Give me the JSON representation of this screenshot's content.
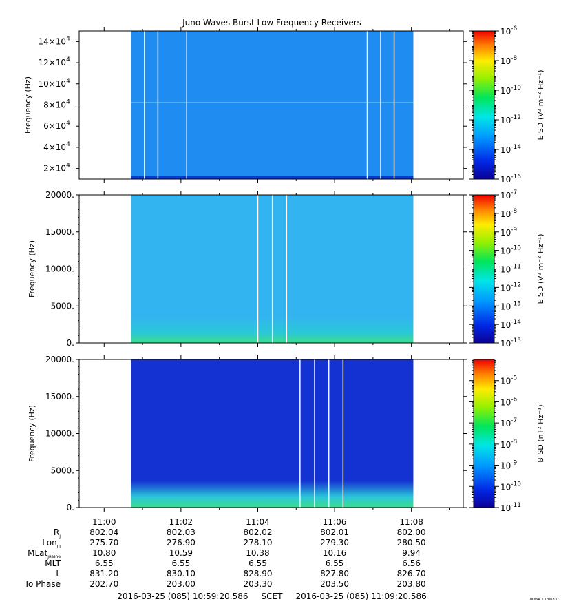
{
  "title": "Juno Waves Burst Low Frequency Receivers",
  "chart_data": [
    {
      "type": "heatmap",
      "panel": 1,
      "ylabel": "Frequency (Hz)",
      "ylim": [
        10000,
        150000
      ],
      "y_ticks": [
        20000,
        40000,
        60000,
        80000,
        100000,
        120000,
        140000
      ],
      "y_tick_labels": [
        {
          "m": "2×10",
          "e": "4"
        },
        {
          "m": "4×10",
          "e": "4"
        },
        {
          "m": "6×10",
          "e": "4"
        },
        {
          "m": "8×10",
          "e": "4"
        },
        {
          "m": "10×10",
          "e": "4"
        },
        {
          "m": "12×10",
          "e": "4"
        },
        {
          "m": "14×10",
          "e": "4"
        }
      ],
      "data_minutes": [
        0.7,
        8.05
      ],
      "gap_lines_minutes": [
        1.05,
        1.4,
        2.15,
        6.85,
        7.2,
        7.55
      ],
      "dominant_color": "#1e8cf0",
      "colorbar": {
        "label": "E SD (V² m⁻² Hz⁻¹)",
        "scale": "log",
        "range": [
          -16,
          -6
        ],
        "tick_exponents": [
          -6,
          -8,
          -10,
          -12,
          -14,
          -16
        ],
        "tick_labels": [
          {
            "m": "10",
            "e": "-6"
          },
          {
            "m": "10",
            "e": "-8"
          },
          {
            "m": "10",
            "e": "-10"
          },
          {
            "m": "10",
            "e": "-12"
          },
          {
            "m": "10",
            "e": "-14"
          },
          {
            "m": "10",
            "e": "-16"
          }
        ]
      }
    },
    {
      "type": "heatmap",
      "panel": 2,
      "ylabel": "Frequency (Hz)",
      "ylim": [
        0,
        20000
      ],
      "y_ticks": [
        0,
        5000,
        10000,
        15000,
        20000
      ],
      "y_tick_labels": [
        "0.",
        "5000.",
        "10000.",
        "15000.",
        "20000."
      ],
      "data_minutes": [
        0.7,
        8.05
      ],
      "gap_lines_minutes": [
        4.0,
        4.38,
        4.75
      ],
      "dominant_color": "#32b4f0",
      "low_freq_color": "#3cdc8c",
      "colorbar": {
        "label": "E SD (V² m⁻² Hz⁻¹)",
        "scale": "log",
        "range": [
          -15,
          -7
        ],
        "tick_exponents": [
          -7,
          -8,
          -9,
          -10,
          -11,
          -12,
          -13,
          -14,
          -15
        ],
        "tick_labels": [
          {
            "m": "10",
            "e": "-7"
          },
          {
            "m": "10",
            "e": "-8"
          },
          {
            "m": "10",
            "e": "-9"
          },
          {
            "m": "10",
            "e": "-10"
          },
          {
            "m": "10",
            "e": "-11"
          },
          {
            "m": "10",
            "e": "-12"
          },
          {
            "m": "10",
            "e": "-13"
          },
          {
            "m": "10",
            "e": "-14"
          },
          {
            "m": "10",
            "e": "-15"
          }
        ]
      }
    },
    {
      "type": "heatmap",
      "panel": 3,
      "ylabel": "Frequency (Hz)",
      "ylim": [
        0,
        20000
      ],
      "y_ticks": [
        0,
        5000,
        10000,
        15000,
        20000
      ],
      "y_tick_labels": [
        "0.",
        "5000.",
        "10000.",
        "15000.",
        "20000."
      ],
      "data_minutes": [
        0.7,
        8.05
      ],
      "gap_lines_minutes": [
        5.1,
        5.48,
        5.85,
        6.22
      ],
      "dominant_color": "#1432d2",
      "low_freq_color": "#3cdc8c",
      "colorbar": {
        "label": "B SD (nT² Hz⁻¹)",
        "scale": "log",
        "range": [
          -11,
          -4
        ],
        "tick_exponents": [
          -5,
          -6,
          -7,
          -8,
          -9,
          -10,
          -11
        ],
        "tick_labels": [
          {
            "m": "10",
            "e": "-5"
          },
          {
            "m": "10",
            "e": "-6"
          },
          {
            "m": "10",
            "e": "-7"
          },
          {
            "m": "10",
            "e": "-8"
          },
          {
            "m": "10",
            "e": "-9"
          },
          {
            "m": "10",
            "e": "-10"
          },
          {
            "m": "10",
            "e": "-11"
          }
        ]
      }
    }
  ],
  "x_axis": {
    "time_range_minutes": [
      -0.65,
      9.35
    ],
    "major_minutes": [
      0,
      2,
      4,
      6,
      8
    ],
    "tick_labels": [
      "11:00",
      "11:02",
      "11:04",
      "11:06",
      "11:08"
    ],
    "minor_step_minutes": 1
  },
  "ephemeris": {
    "rows": [
      {
        "label": "R",
        "sub": "J",
        "values": [
          "802.04",
          "802.03",
          "802.02",
          "802.01",
          "802.00"
        ]
      },
      {
        "label": "Lon",
        "sub": "III",
        "values": [
          "275.70",
          "276.90",
          "278.10",
          "279.30",
          "280.50"
        ]
      },
      {
        "label": "MLat",
        "sub": "JRM09",
        "values": [
          "10.80",
          "10.59",
          "10.38",
          "10.16",
          "9.94"
        ]
      },
      {
        "label": "MLT",
        "sub": "",
        "values": [
          "6.55",
          "6.55",
          "6.55",
          "6.55",
          "6.56"
        ]
      },
      {
        "label": "L",
        "sub": "",
        "values": [
          "831.20",
          "830.10",
          "828.90",
          "827.80",
          "826.70"
        ]
      },
      {
        "label": "Io Phase",
        "sub": "",
        "values": [
          "202.70",
          "203.00",
          "203.30",
          "203.50",
          "203.80"
        ]
      }
    ]
  },
  "footer": {
    "time_span": "2016-03-25 (085) 10:59:20.586     SCET     2016-03-25 (085) 11:09:20.586",
    "stamp": "UIOWA 20200307"
  }
}
